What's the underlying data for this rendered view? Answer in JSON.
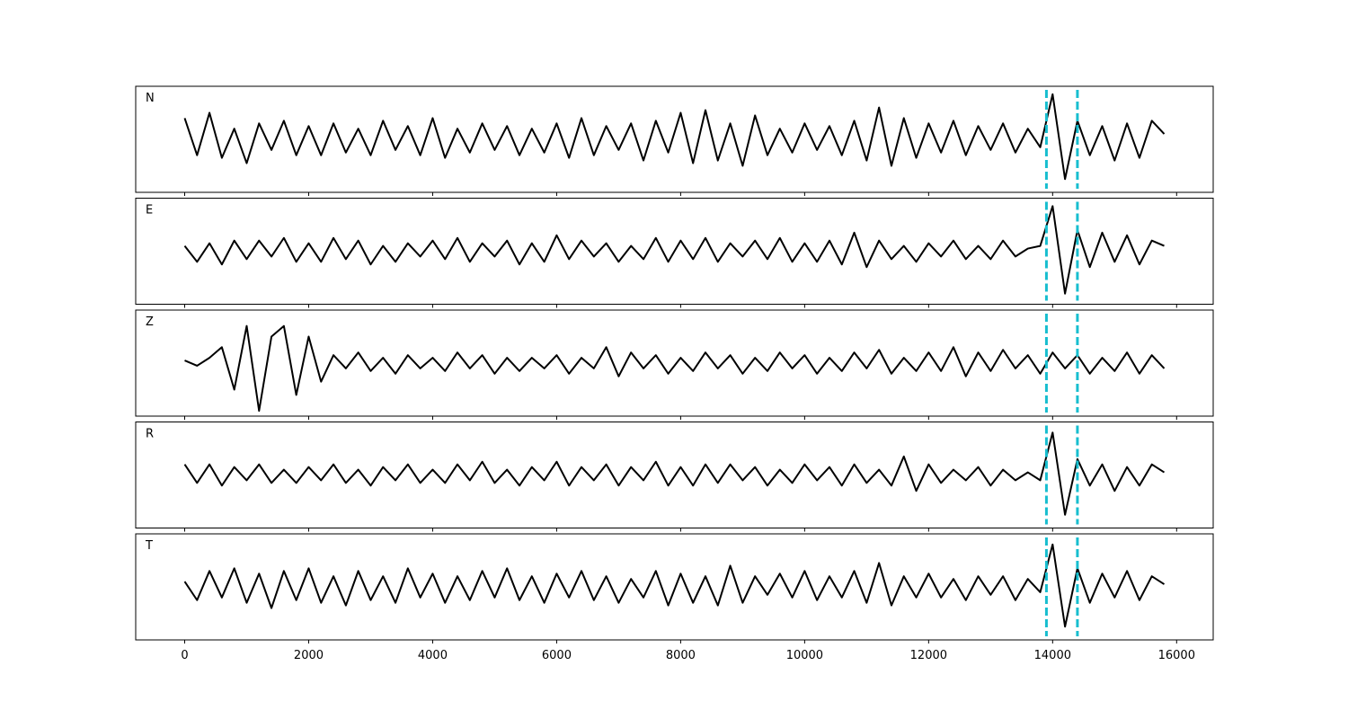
{
  "chart_data": [
    {
      "type": "line",
      "x": [
        0,
        200,
        400,
        600,
        800,
        1000,
        1200,
        1400,
        1600,
        1800,
        2000,
        2200,
        2400,
        2600,
        2800,
        3000,
        3200,
        3400,
        3600,
        3800,
        4000,
        4200,
        4400,
        4600,
        4800,
        5000,
        5200,
        5400,
        5600,
        5800,
        6000,
        6200,
        6400,
        6600,
        6800,
        7000,
        7200,
        7400,
        7600,
        7800,
        8000,
        8200,
        8400,
        8600,
        8800,
        9000,
        9200,
        9400,
        9600,
        9800,
        10000,
        10200,
        10400,
        10600,
        10800,
        11000,
        11200,
        11400,
        11600,
        11800,
        12000,
        12200,
        12400,
        12600,
        12800,
        13000,
        13200,
        13400,
        13600,
        13800,
        14000,
        14200,
        14400,
        14600,
        14800,
        15000,
        15200,
        15400,
        15600,
        15800
      ],
      "series": [
        {
          "name": "N",
          "color": "#000000",
          "values": [
            0.4,
            -0.3,
            0.5,
            -0.35,
            0.2,
            -0.45,
            0.3,
            -0.2,
            0.35,
            -0.3,
            0.25,
            -0.3,
            0.3,
            -0.25,
            0.2,
            -0.3,
            0.35,
            -0.2,
            0.25,
            -0.3,
            0.4,
            -0.35,
            0.2,
            -0.25,
            0.3,
            -0.2,
            0.25,
            -0.3,
            0.2,
            -0.25,
            0.3,
            -0.35,
            0.4,
            -0.3,
            0.25,
            -0.2,
            0.3,
            -0.4,
            0.35,
            -0.25,
            0.5,
            -0.45,
            0.55,
            -0.4,
            0.3,
            -0.5,
            0.45,
            -0.3,
            0.2,
            -0.25,
            0.3,
            -0.2,
            0.25,
            -0.3,
            0.35,
            -0.4,
            0.6,
            -0.5,
            0.4,
            -0.35,
            0.3,
            -0.25,
            0.35,
            -0.3,
            0.25,
            -0.2,
            0.3,
            -0.25,
            0.2,
            -0.15,
            0.85,
            -0.75,
            0.35,
            -0.3,
            0.25,
            -0.4,
            0.3,
            -0.35,
            0.35,
            0.1
          ]
        }
      ],
      "xlim": [
        -790,
        16590
      ],
      "ylim": [
        -1,
        1
      ],
      "xticks": [
        0,
        2000,
        4000,
        6000,
        8000,
        10000,
        12000,
        14000,
        16000
      ],
      "show_xtick_labels": false,
      "vlines": [
        13900,
        14400
      ],
      "vline_color": "#17becf"
    },
    {
      "type": "line",
      "x": [
        0,
        200,
        400,
        600,
        800,
        1000,
        1200,
        1400,
        1600,
        1800,
        2000,
        2200,
        2400,
        2600,
        2800,
        3000,
        3200,
        3400,
        3600,
        3800,
        4000,
        4200,
        4400,
        4600,
        4800,
        5000,
        5200,
        5400,
        5600,
        5800,
        6000,
        6200,
        6400,
        6600,
        6800,
        7000,
        7200,
        7400,
        7600,
        7800,
        8000,
        8200,
        8400,
        8600,
        8800,
        9000,
        9200,
        9400,
        9600,
        9800,
        10000,
        10200,
        10400,
        10600,
        10800,
        11000,
        11200,
        11400,
        11600,
        11800,
        12000,
        12200,
        12400,
        12600,
        12800,
        13000,
        13200,
        13400,
        13600,
        13800,
        14000,
        14200,
        14400,
        14600,
        14800,
        15000,
        15200,
        15400,
        15600,
        15800
      ],
      "series": [
        {
          "name": "E",
          "color": "#000000",
          "values": [
            0.1,
            -0.2,
            0.15,
            -0.25,
            0.2,
            -0.15,
            0.2,
            -0.1,
            0.25,
            -0.2,
            0.15,
            -0.2,
            0.25,
            -0.15,
            0.2,
            -0.25,
            0.1,
            -0.2,
            0.15,
            -0.1,
            0.2,
            -0.15,
            0.25,
            -0.2,
            0.15,
            -0.1,
            0.2,
            -0.25,
            0.15,
            -0.2,
            0.3,
            -0.15,
            0.2,
            -0.1,
            0.15,
            -0.2,
            0.1,
            -0.15,
            0.25,
            -0.2,
            0.2,
            -0.15,
            0.25,
            -0.2,
            0.15,
            -0.1,
            0.2,
            -0.15,
            0.25,
            -0.2,
            0.15,
            -0.2,
            0.2,
            -0.25,
            0.35,
            -0.3,
            0.2,
            -0.15,
            0.1,
            -0.2,
            0.15,
            -0.1,
            0.2,
            -0.15,
            0.1,
            -0.15,
            0.2,
            -0.1,
            0.05,
            0.1,
            0.85,
            -0.8,
            0.4,
            -0.3,
            0.35,
            -0.2,
            0.3,
            -0.25,
            0.2,
            0.1
          ]
        }
      ],
      "xlim": [
        -790,
        16590
      ],
      "ylim": [
        -1,
        1
      ],
      "xticks": [
        0,
        2000,
        4000,
        6000,
        8000,
        10000,
        12000,
        14000,
        16000
      ],
      "show_xtick_labels": false,
      "vlines": [
        13900,
        14400
      ],
      "vline_color": "#17becf"
    },
    {
      "type": "line",
      "x": [
        0,
        200,
        400,
        600,
        800,
        1000,
        1200,
        1400,
        1600,
        1800,
        2000,
        2200,
        2400,
        2600,
        2800,
        3000,
        3200,
        3400,
        3600,
        3800,
        4000,
        4200,
        4400,
        4600,
        4800,
        5000,
        5200,
        5400,
        5600,
        5800,
        6000,
        6200,
        6400,
        6600,
        6800,
        7000,
        7200,
        7400,
        7600,
        7800,
        8000,
        8200,
        8400,
        8600,
        8800,
        9000,
        9200,
        9400,
        9600,
        9800,
        10000,
        10200,
        10400,
        10600,
        10800,
        11000,
        11200,
        11400,
        11600,
        11800,
        12000,
        12200,
        12400,
        12600,
        12800,
        13000,
        13200,
        13400,
        13600,
        13800,
        14000,
        14200,
        14400,
        14600,
        14800,
        15000,
        15200,
        15400,
        15600,
        15800
      ],
      "series": [
        {
          "name": "Z",
          "color": "#000000",
          "values": [
            0.05,
            -0.05,
            0.1,
            0.3,
            -0.5,
            0.7,
            -0.9,
            0.5,
            0.7,
            -0.6,
            0.5,
            -0.35,
            0.15,
            -0.1,
            0.2,
            -0.15,
            0.1,
            -0.2,
            0.15,
            -0.1,
            0.1,
            -0.15,
            0.2,
            -0.1,
            0.15,
            -0.2,
            0.1,
            -0.15,
            0.1,
            -0.1,
            0.15,
            -0.2,
            0.1,
            -0.1,
            0.3,
            -0.25,
            0.2,
            -0.1,
            0.15,
            -0.2,
            0.1,
            -0.15,
            0.2,
            -0.1,
            0.15,
            -0.2,
            0.1,
            -0.15,
            0.2,
            -0.1,
            0.15,
            -0.2,
            0.1,
            -0.15,
            0.2,
            -0.1,
            0.25,
            -0.2,
            0.1,
            -0.15,
            0.2,
            -0.15,
            0.3,
            -0.25,
            0.2,
            -0.15,
            0.25,
            -0.1,
            0.15,
            -0.2,
            0.2,
            -0.1,
            0.15,
            -0.2,
            0.1,
            -0.15,
            0.2,
            -0.2,
            0.15,
            -0.1
          ]
        }
      ],
      "xlim": [
        -790,
        16590
      ],
      "ylim": [
        -1,
        1
      ],
      "xticks": [
        0,
        2000,
        4000,
        6000,
        8000,
        10000,
        12000,
        14000,
        16000
      ],
      "show_xtick_labels": false,
      "vlines": [
        13900,
        14400
      ],
      "vline_color": "#17becf"
    },
    {
      "type": "line",
      "x": [
        0,
        200,
        400,
        600,
        800,
        1000,
        1200,
        1400,
        1600,
        1800,
        2000,
        2200,
        2400,
        2600,
        2800,
        3000,
        3200,
        3400,
        3600,
        3800,
        4000,
        4200,
        4400,
        4600,
        4800,
        5000,
        5200,
        5400,
        5600,
        5800,
        6000,
        6200,
        6400,
        6600,
        6800,
        7000,
        7200,
        7400,
        7600,
        7800,
        8000,
        8200,
        8400,
        8600,
        8800,
        9000,
        9200,
        9400,
        9600,
        9800,
        10000,
        10200,
        10400,
        10600,
        10800,
        11000,
        11200,
        11400,
        11600,
        11800,
        12000,
        12200,
        12400,
        12600,
        12800,
        13000,
        13200,
        13400,
        13600,
        13800,
        14000,
        14200,
        14400,
        14600,
        14800,
        15000,
        15200,
        15400,
        15600,
        15800
      ],
      "series": [
        {
          "name": "R",
          "color": "#000000",
          "values": [
            0.2,
            -0.15,
            0.2,
            -0.2,
            0.15,
            -0.1,
            0.2,
            -0.15,
            0.1,
            -0.15,
            0.15,
            -0.1,
            0.2,
            -0.15,
            0.1,
            -0.2,
            0.15,
            -0.1,
            0.2,
            -0.15,
            0.1,
            -0.15,
            0.2,
            -0.1,
            0.25,
            -0.15,
            0.1,
            -0.2,
            0.15,
            -0.1,
            0.25,
            -0.2,
            0.15,
            -0.1,
            0.2,
            -0.2,
            0.15,
            -0.1,
            0.25,
            -0.2,
            0.15,
            -0.2,
            0.2,
            -0.15,
            0.2,
            -0.1,
            0.15,
            -0.2,
            0.1,
            -0.15,
            0.2,
            -0.1,
            0.15,
            -0.2,
            0.2,
            -0.15,
            0.1,
            -0.2,
            0.35,
            -0.3,
            0.2,
            -0.15,
            0.1,
            -0.1,
            0.15,
            -0.2,
            0.1,
            -0.1,
            0.05,
            -0.1,
            0.8,
            -0.75,
            0.3,
            -0.2,
            0.2,
            -0.3,
            0.15,
            -0.2,
            0.2,
            0.05
          ]
        }
      ],
      "xlim": [
        -790,
        16590
      ],
      "ylim": [
        -1,
        1
      ],
      "xticks": [
        0,
        2000,
        4000,
        6000,
        8000,
        10000,
        12000,
        14000,
        16000
      ],
      "show_xtick_labels": false,
      "vlines": [
        13900,
        14400
      ],
      "vline_color": "#17becf"
    },
    {
      "type": "line",
      "x": [
        0,
        200,
        400,
        600,
        800,
        1000,
        1200,
        1400,
        1600,
        1800,
        2000,
        2200,
        2400,
        2600,
        2800,
        3000,
        3200,
        3400,
        3600,
        3800,
        4000,
        4200,
        4400,
        4600,
        4800,
        5000,
        5200,
        5400,
        5600,
        5800,
        6000,
        6200,
        6400,
        6600,
        6800,
        7000,
        7200,
        7400,
        7600,
        7800,
        8000,
        8200,
        8400,
        8600,
        8800,
        9000,
        9200,
        9400,
        9600,
        9800,
        10000,
        10200,
        10400,
        10600,
        10800,
        11000,
        11200,
        11400,
        11600,
        11800,
        12000,
        12200,
        12400,
        12600,
        12800,
        13000,
        13200,
        13400,
        13600,
        13800,
        14000,
        14200,
        14400,
        14600,
        14800,
        15000,
        15200,
        15400,
        15600,
        15800
      ],
      "series": [
        {
          "name": "T",
          "color": "#000000",
          "values": [
            0.1,
            -0.25,
            0.3,
            -0.2,
            0.35,
            -0.3,
            0.25,
            -0.4,
            0.3,
            -0.25,
            0.35,
            -0.3,
            0.2,
            -0.35,
            0.3,
            -0.25,
            0.2,
            -0.3,
            0.35,
            -0.2,
            0.25,
            -0.3,
            0.2,
            -0.25,
            0.3,
            -0.2,
            0.35,
            -0.25,
            0.2,
            -0.3,
            0.25,
            -0.2,
            0.3,
            -0.25,
            0.2,
            -0.3,
            0.15,
            -0.2,
            0.3,
            -0.35,
            0.25,
            -0.3,
            0.2,
            -0.35,
            0.4,
            -0.3,
            0.2,
            -0.15,
            0.25,
            -0.2,
            0.3,
            -0.25,
            0.2,
            -0.2,
            0.3,
            -0.3,
            0.45,
            -0.35,
            0.2,
            -0.2,
            0.25,
            -0.2,
            0.15,
            -0.25,
            0.2,
            -0.15,
            0.2,
            -0.25,
            0.15,
            -0.1,
            0.8,
            -0.75,
            0.35,
            -0.3,
            0.25,
            -0.2,
            0.3,
            -0.25,
            0.2,
            0.05
          ]
        }
      ],
      "xlim": [
        -790,
        16590
      ],
      "ylim": [
        -1,
        1
      ],
      "xticks": [
        0,
        2000,
        4000,
        6000,
        8000,
        10000,
        12000,
        14000,
        16000
      ],
      "show_xtick_labels": true,
      "vlines": [
        13900,
        14400
      ],
      "vline_color": "#17becf"
    }
  ]
}
